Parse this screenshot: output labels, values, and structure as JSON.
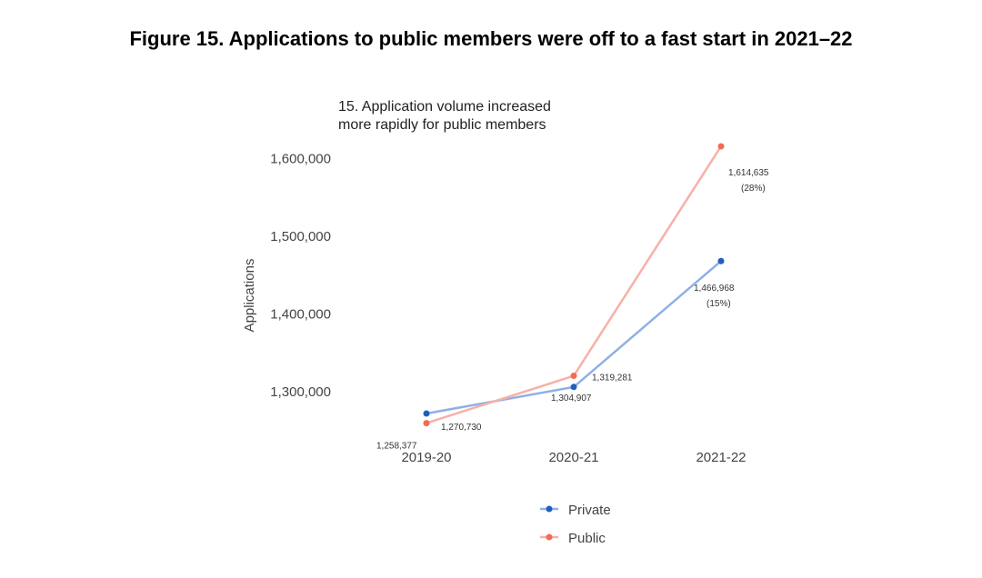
{
  "figure_title": "Figure 15. Applications to public members were off to a fast start in 2021–22",
  "chart_data": {
    "type": "line",
    "title": [
      "15. Application volume increased",
      "more rapidly for public members"
    ],
    "xlabel": "",
    "ylabel": "Applications",
    "categories": [
      "2019-20",
      "2020-21",
      "2021-22"
    ],
    "y_ticks": [
      1300000,
      1400000,
      1500000,
      1600000
    ],
    "y_tick_labels": [
      "1,300,000",
      "1,400,000",
      "1,500,000",
      "1,600,000"
    ],
    "grid": false,
    "legend_position": "bottom",
    "series": [
      {
        "name": "Private",
        "color": "#1f5fbf",
        "line_color": "#8fb0e6",
        "values": [
          1270730,
          1304907,
          1466968
        ],
        "labels": [
          "1,270,730",
          "1,304,907",
          "1,466,968"
        ],
        "pct": [
          "",
          "",
          "(15%)"
        ]
      },
      {
        "name": "Public",
        "color": "#f26b55",
        "line_color": "#f7b1a6",
        "values": [
          1258377,
          1319281,
          1614635
        ],
        "labels": [
          "1,258,377",
          "1,319,281",
          "1,614,635"
        ],
        "pct": [
          "",
          "",
          "(28%)"
        ]
      }
    ]
  }
}
